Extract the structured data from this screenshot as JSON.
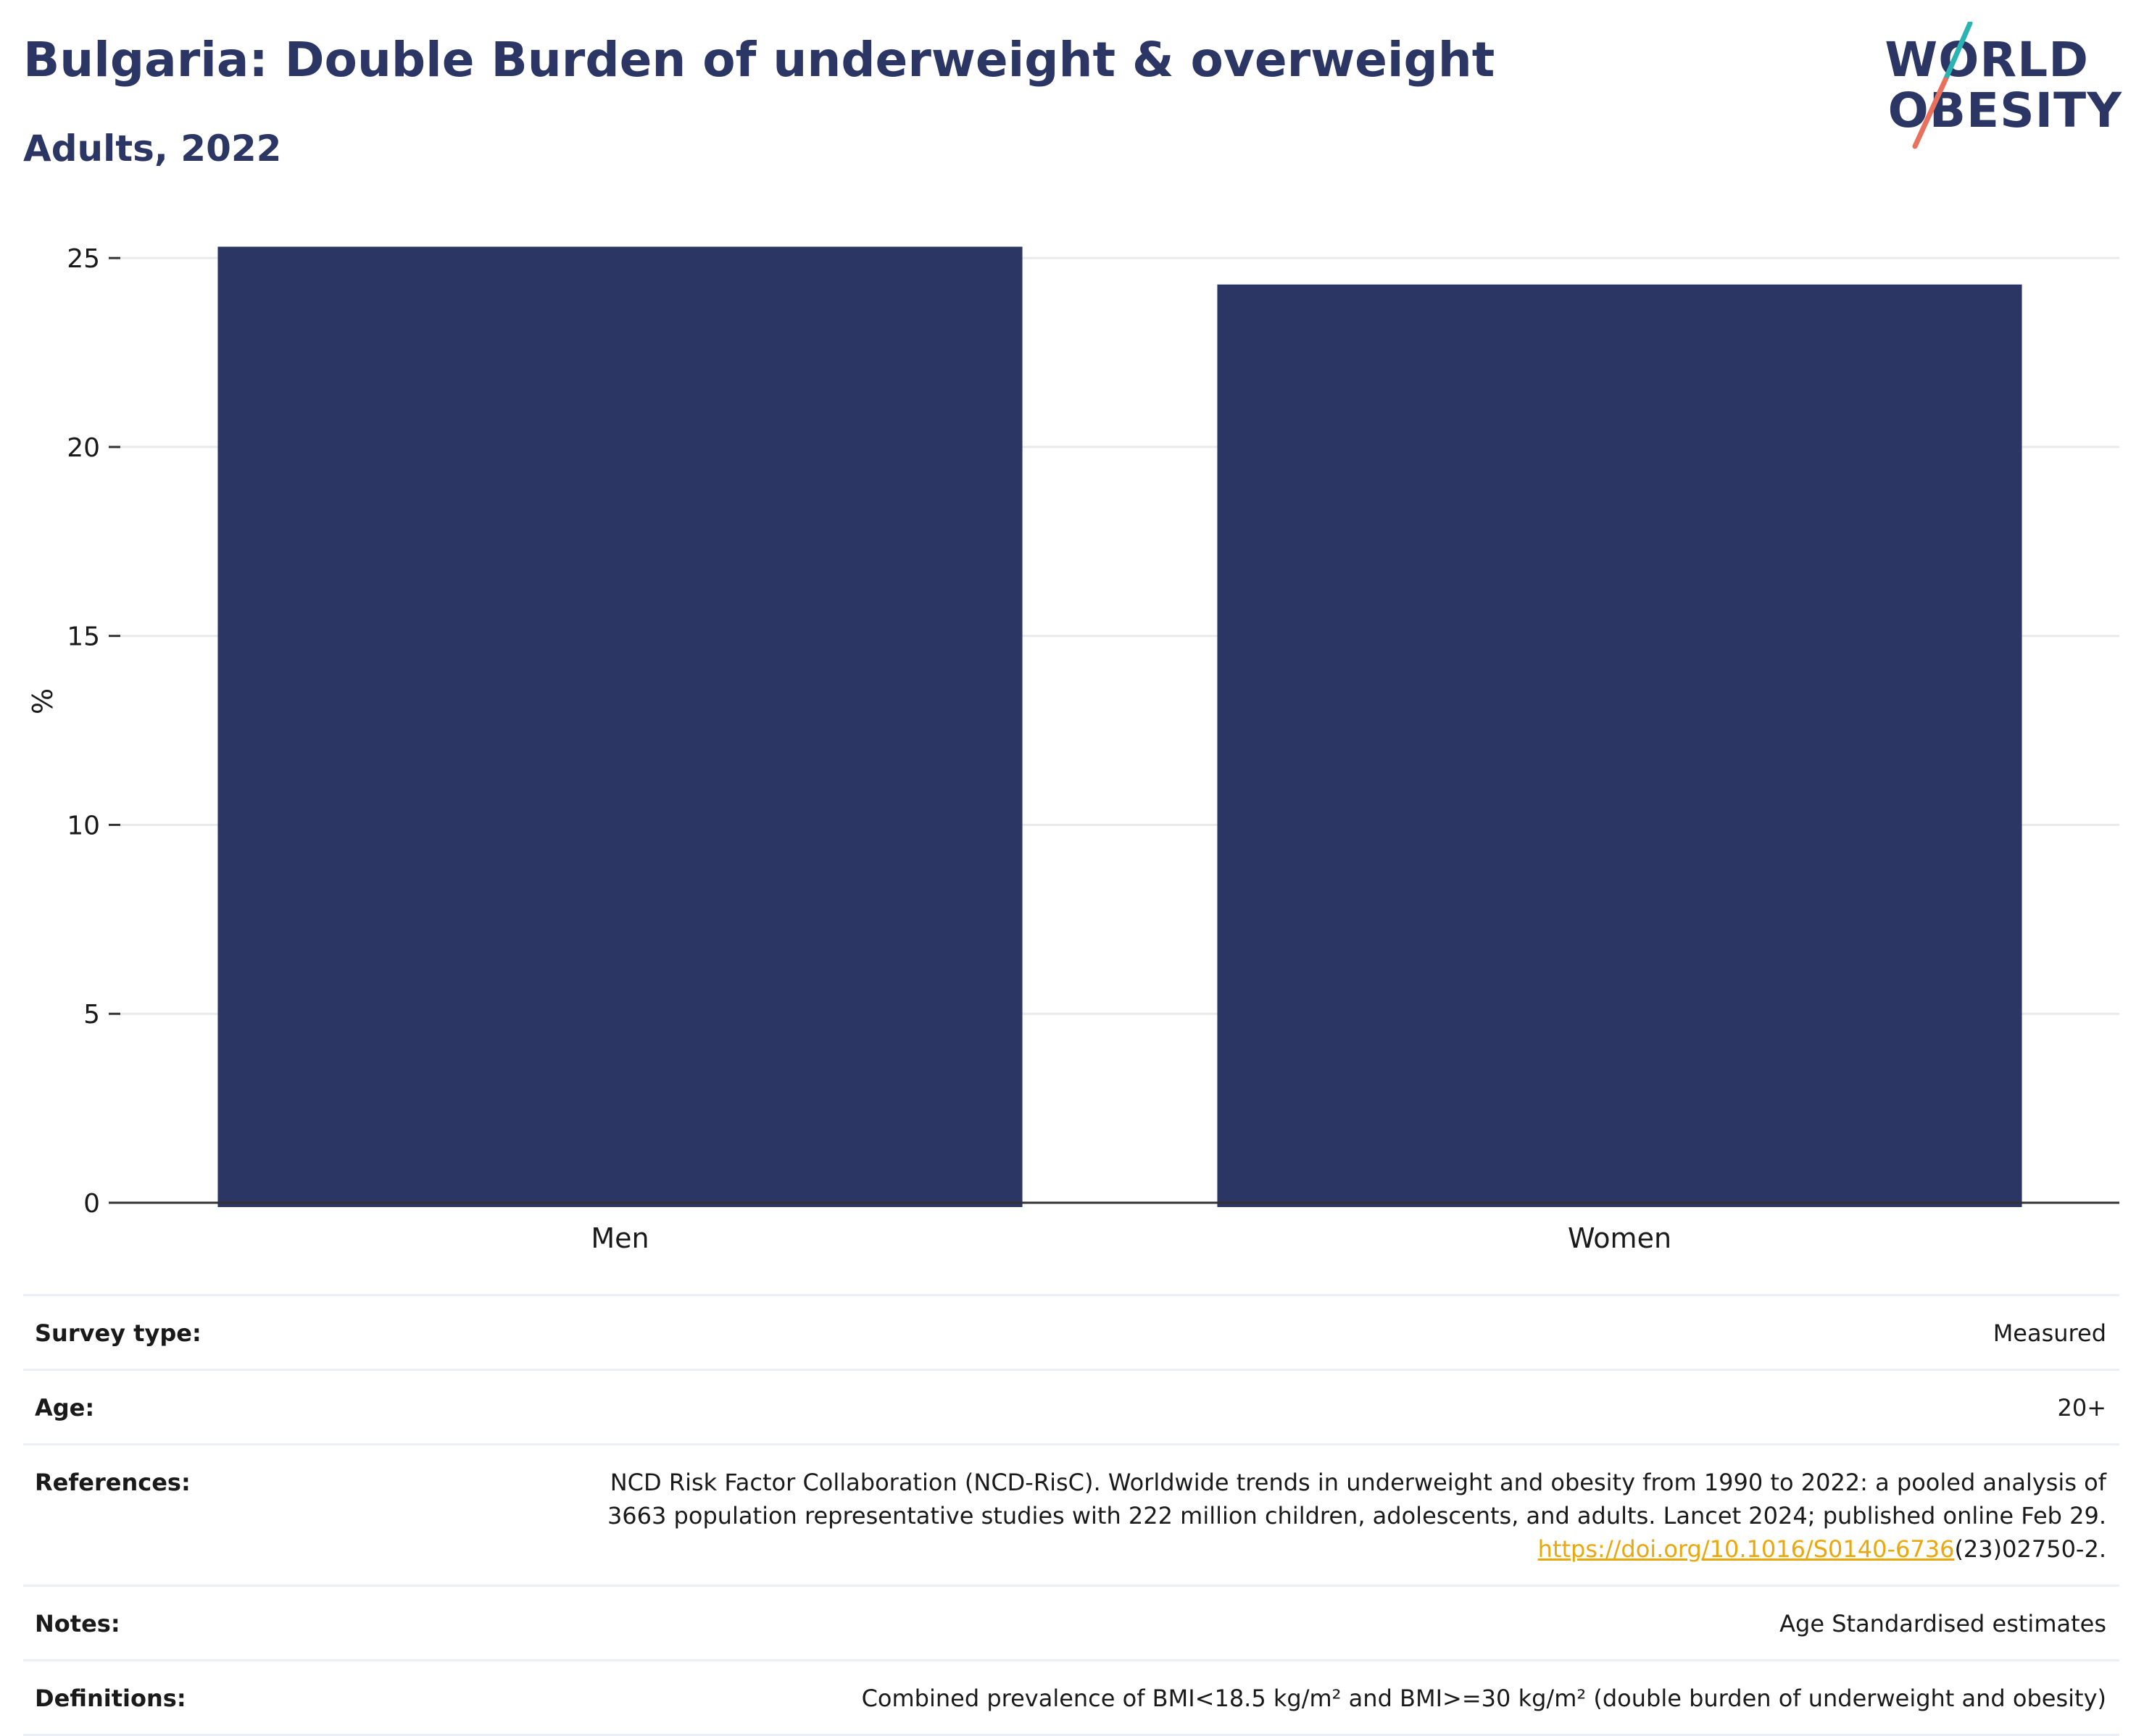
{
  "header": {
    "title": "Bulgaria: Double Burden of underweight & overweight",
    "subtitle": "Adults, 2022"
  },
  "logo": {
    "line1": "WORLD",
    "line2": "OBESITY",
    "colors": {
      "text": "#2b3664",
      "slash_top": "#2bb3b1",
      "slash_bottom": "#e8705c"
    }
  },
  "chart_data": {
    "type": "bar",
    "categories": [
      "Men",
      "Women"
    ],
    "values": [
      25.3,
      24.3
    ],
    "ylabel": "%",
    "xlabel": "",
    "ylim": [
      0,
      26
    ],
    "yticks": [
      0,
      5,
      10,
      15,
      20,
      25
    ],
    "grid": true,
    "bar_color": "#2b3664"
  },
  "meta": {
    "rows": [
      {
        "label": "Survey type:",
        "value": "Measured"
      },
      {
        "label": "Age:",
        "value": "20+"
      },
      {
        "label": "References:",
        "value_line1": "NCD Risk Factor Collaboration (NCD-RisC). Worldwide trends in underweight and obesity from 1990 to 2022: a pooled analysis of",
        "value_line2": "3663 population representative studies with 222 million children, adolescents, and adults. Lancet 2024; published online Feb 29.",
        "link": "https://doi.org/10.1016/S0140-6736",
        "link_suffix": "(23)02750-2."
      },
      {
        "label": "Notes:",
        "value": "Age Standardised estimates"
      },
      {
        "label": "Definitions:",
        "value": "Combined prevalence of BMI<18.5 kg/m² and BMI>=30 kg/m² (double burden of underweight and obesity)"
      }
    ]
  }
}
